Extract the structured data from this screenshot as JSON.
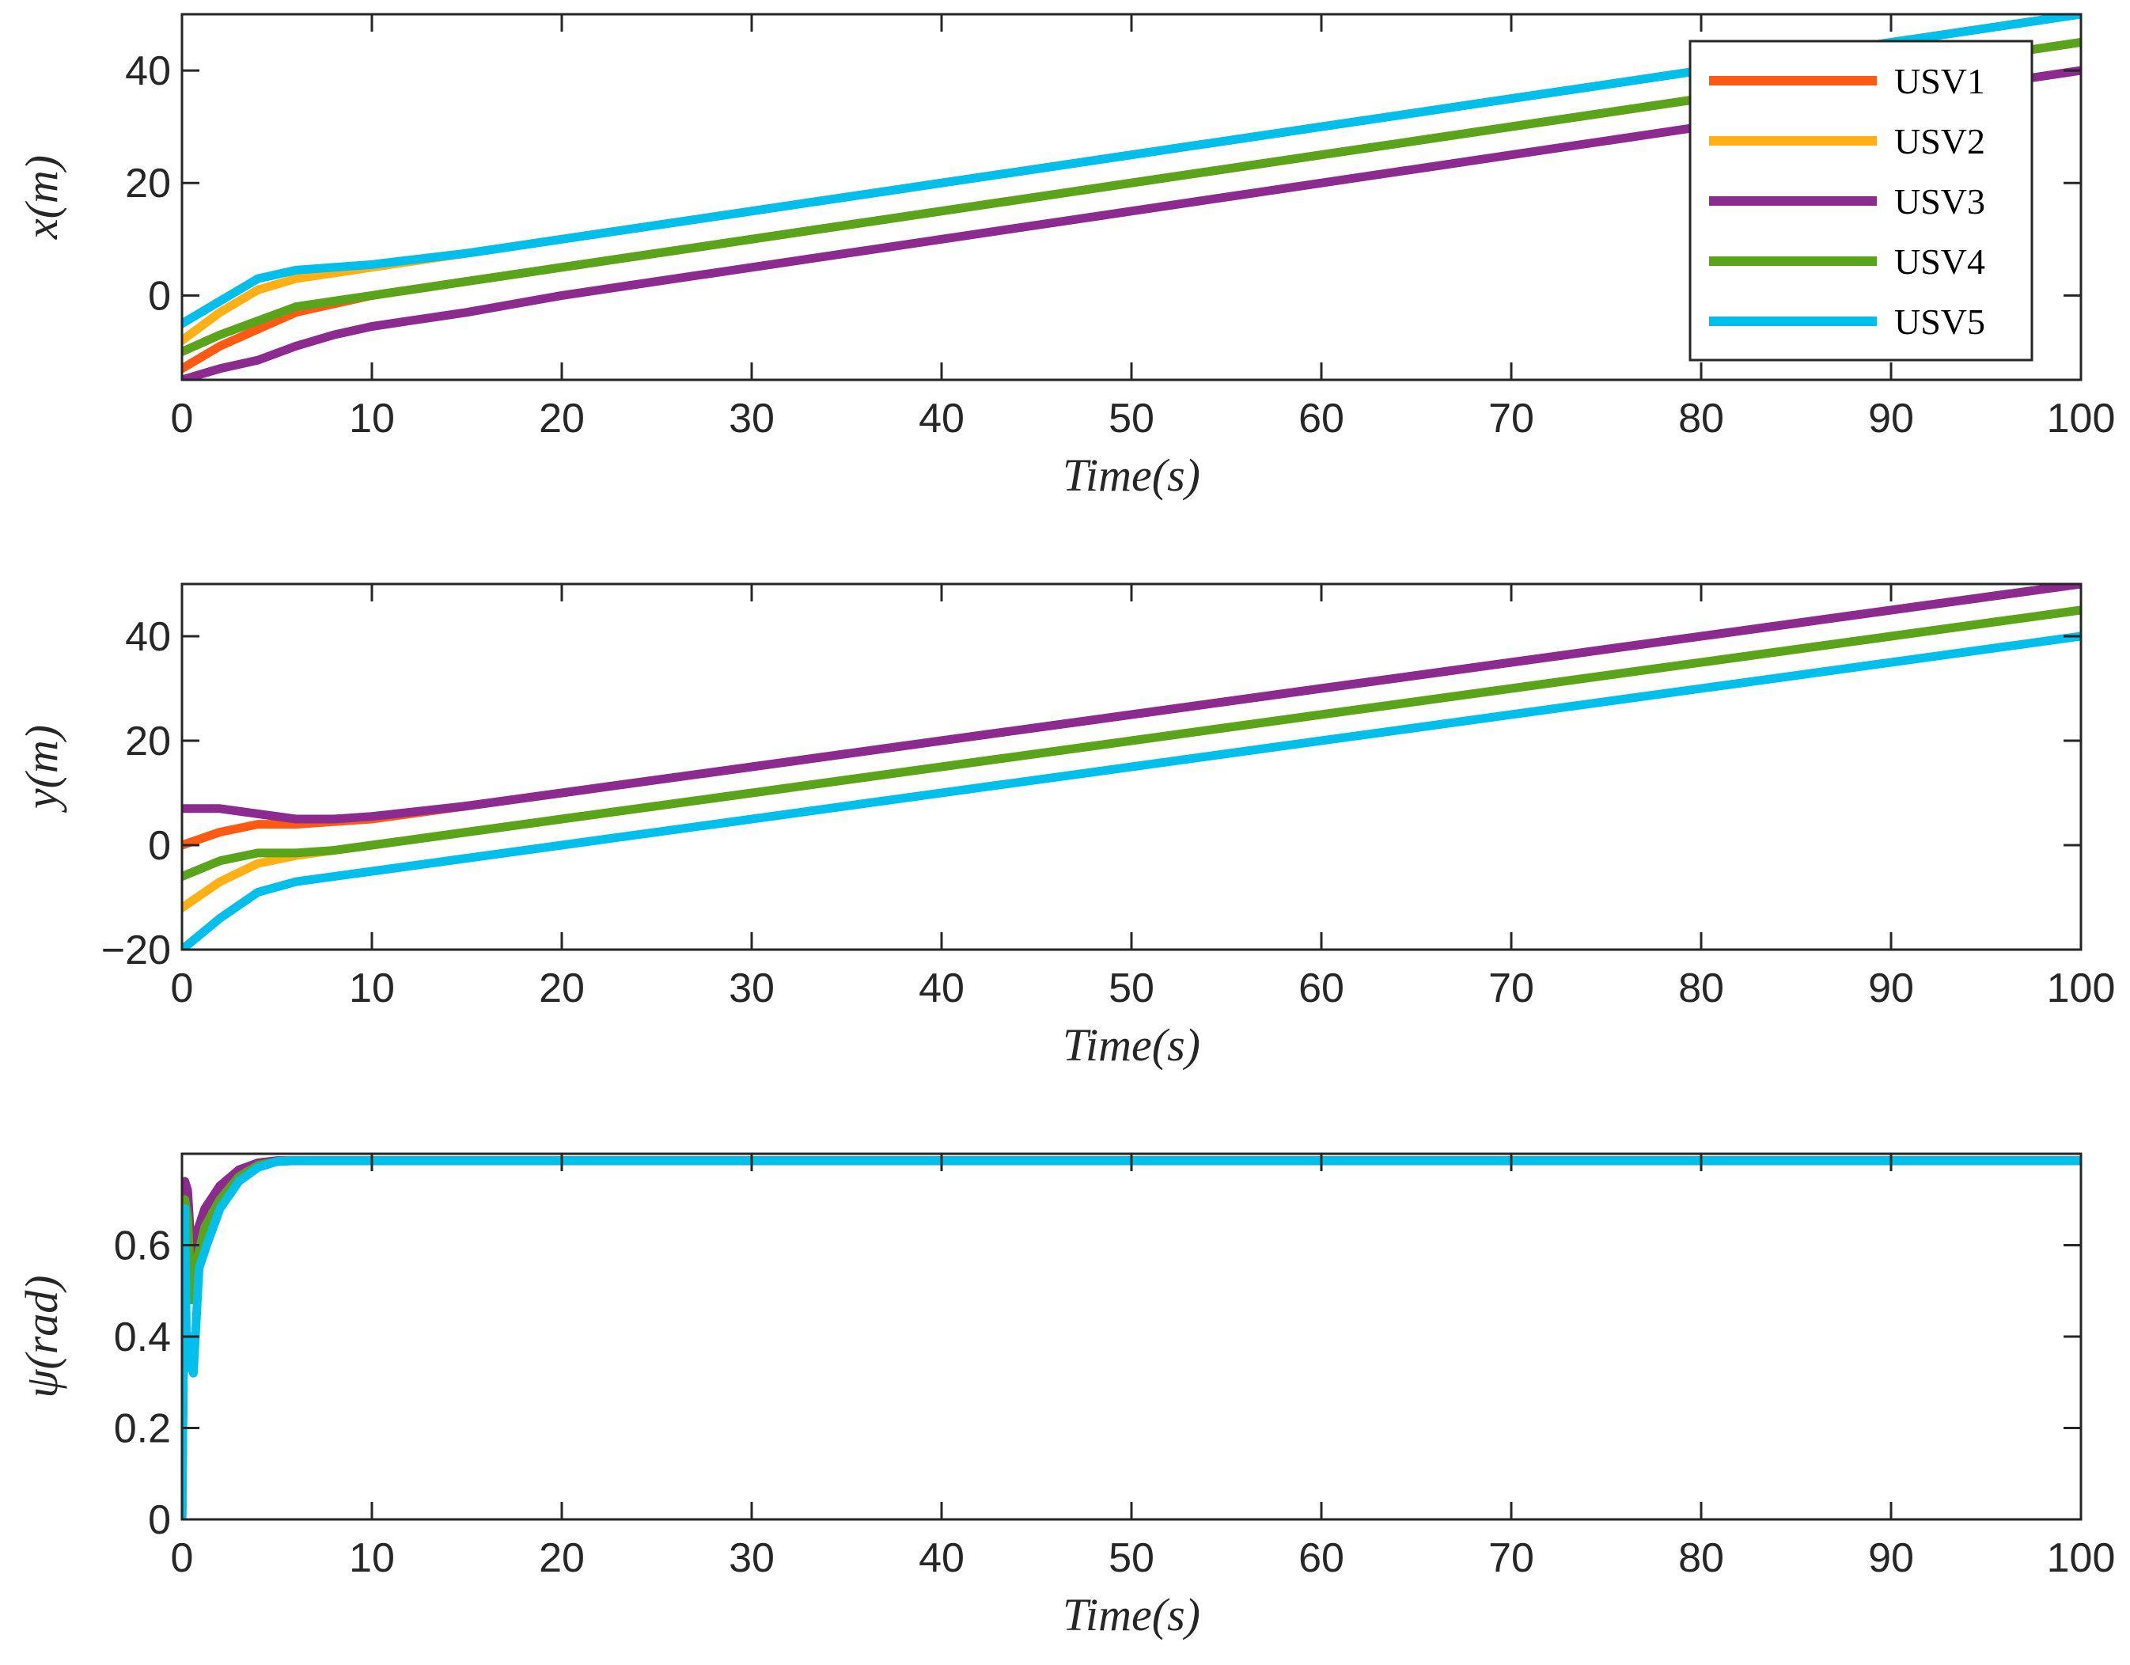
{
  "chart_data": [
    {
      "type": "line",
      "id": "x",
      "xlabel": "Time(s)",
      "ylabel": "x(m)",
      "xlim": [
        0,
        100
      ],
      "ylim": [
        -15,
        50
      ],
      "xticks": [
        0,
        10,
        20,
        30,
        40,
        50,
        60,
        70,
        80,
        90,
        100
      ],
      "yticks": [
        0,
        20,
        40
      ],
      "legend": {
        "position": "top-right",
        "entries": [
          "USV1",
          "USV2",
          "USV3",
          "USV4",
          "USV5"
        ]
      },
      "series": [
        {
          "name": "USV1",
          "color": "#ff5a14",
          "x": [
            0,
            2,
            4,
            6,
            8,
            10,
            15,
            20,
            100
          ],
          "y": [
            -13,
            -9,
            -6,
            -3,
            -1.5,
            0,
            2.5,
            5,
            45
          ]
        },
        {
          "name": "USV2",
          "color": "#ffb014",
          "x": [
            0,
            2,
            4,
            6,
            8,
            10,
            15,
            20,
            100
          ],
          "y": [
            -8,
            -3,
            1,
            3,
            4,
            5,
            7.5,
            10,
            50
          ]
        },
        {
          "name": "USV3",
          "color": "#8b2a8f",
          "x": [
            0,
            2,
            4,
            6,
            8,
            10,
            15,
            20,
            100
          ],
          "y": [
            -15,
            -13,
            -11.5,
            -9,
            -7,
            -5.5,
            -3,
            0,
            40
          ]
        },
        {
          "name": "USV4",
          "color": "#5aa41c",
          "x": [
            0,
            2,
            4,
            6,
            8,
            10,
            15,
            20,
            100
          ],
          "y": [
            -10,
            -7,
            -4.5,
            -2,
            -1,
            0,
            2.5,
            5,
            45
          ]
        },
        {
          "name": "USV5",
          "color": "#00bfea",
          "x": [
            0,
            2,
            4,
            6,
            8,
            10,
            15,
            20,
            100
          ],
          "y": [
            -5,
            -1,
            3,
            4.5,
            5,
            5.5,
            7.5,
            10,
            50
          ]
        }
      ]
    },
    {
      "type": "line",
      "id": "y",
      "xlabel": "Time(s)",
      "ylabel": "y(m)",
      "xlim": [
        0,
        100
      ],
      "ylim": [
        -20,
        50
      ],
      "xticks": [
        0,
        10,
        20,
        30,
        40,
        50,
        60,
        70,
        80,
        90,
        100
      ],
      "yticks": [
        -20,
        0,
        20,
        40
      ],
      "series": [
        {
          "name": "USV1",
          "color": "#ff5a14",
          "x": [
            0,
            2,
            4,
            6,
            8,
            10,
            15,
            20,
            100
          ],
          "y": [
            0,
            2.5,
            4,
            4,
            4.5,
            5,
            7.5,
            10,
            50
          ]
        },
        {
          "name": "USV2",
          "color": "#ffb014",
          "x": [
            0,
            2,
            4,
            6,
            8,
            10,
            15,
            20,
            100
          ],
          "y": [
            -12,
            -7,
            -3.5,
            -2,
            -1,
            0,
            2.5,
            5,
            45
          ]
        },
        {
          "name": "USV3",
          "color": "#8b2a8f",
          "x": [
            0,
            2,
            4,
            6,
            8,
            10,
            15,
            20,
            100
          ],
          "y": [
            7,
            7,
            6,
            5,
            5,
            5.5,
            7.5,
            10,
            50
          ]
        },
        {
          "name": "USV4",
          "color": "#5aa41c",
          "x": [
            0,
            2,
            4,
            6,
            8,
            10,
            15,
            20,
            100
          ],
          "y": [
            -6,
            -3,
            -1.5,
            -1.5,
            -1,
            0,
            2.5,
            5,
            45
          ]
        },
        {
          "name": "USV5",
          "color": "#00bfea",
          "x": [
            0,
            2,
            4,
            6,
            8,
            10,
            15,
            20,
            100
          ],
          "y": [
            -20,
            -14,
            -9,
            -7,
            -6,
            -5,
            -2.5,
            0,
            40
          ]
        }
      ]
    },
    {
      "type": "line",
      "id": "psi",
      "xlabel": "Time(s)",
      "ylabel": "ψ(rad)",
      "xlim": [
        0,
        100
      ],
      "ylim": [
        0,
        0.8
      ],
      "xticks": [
        0,
        10,
        20,
        30,
        40,
        50,
        60,
        70,
        80,
        90,
        100
      ],
      "yticks": [
        0,
        0.2,
        0.4,
        0.6
      ],
      "series": [
        {
          "name": "USV1",
          "color": "#ff5a14",
          "x": [
            0,
            0.15,
            0.3,
            0.5,
            0.8,
            1.2,
            2,
            3,
            4,
            5,
            6,
            100
          ],
          "y": [
            0,
            0.72,
            0.7,
            0.55,
            0.6,
            0.66,
            0.72,
            0.76,
            0.78,
            0.785,
            0.785,
            0.785
          ]
        },
        {
          "name": "USV2",
          "color": "#ffb014",
          "x": [
            0,
            0.15,
            0.3,
            0.5,
            0.8,
            1.2,
            2,
            3,
            4,
            5,
            6,
            100
          ],
          "y": [
            0,
            0.7,
            0.68,
            0.5,
            0.58,
            0.65,
            0.71,
            0.75,
            0.775,
            0.785,
            0.785,
            0.785
          ]
        },
        {
          "name": "USV3",
          "color": "#8b2a8f",
          "x": [
            0,
            0.15,
            0.3,
            0.5,
            0.8,
            1.2,
            2,
            3,
            4,
            5,
            6,
            100
          ],
          "y": [
            0,
            0.74,
            0.72,
            0.58,
            0.63,
            0.68,
            0.73,
            0.765,
            0.78,
            0.785,
            0.785,
            0.785
          ]
        },
        {
          "name": "USV4",
          "color": "#5aa41c",
          "x": [
            0,
            0.15,
            0.3,
            0.5,
            0.8,
            1.2,
            2,
            3,
            4,
            5,
            6,
            100
          ],
          "y": [
            0,
            0.7,
            0.66,
            0.48,
            0.57,
            0.64,
            0.7,
            0.75,
            0.775,
            0.783,
            0.785,
            0.785
          ]
        },
        {
          "name": "USV5",
          "color": "#00bfea",
          "x": [
            0,
            0.15,
            0.25,
            0.4,
            0.6,
            0.9,
            1.3,
            2,
            3,
            4,
            5,
            6,
            100
          ],
          "y": [
            0,
            0.68,
            0.33,
            0.4,
            0.32,
            0.55,
            0.6,
            0.68,
            0.74,
            0.77,
            0.783,
            0.785,
            0.785
          ]
        }
      ]
    }
  ]
}
